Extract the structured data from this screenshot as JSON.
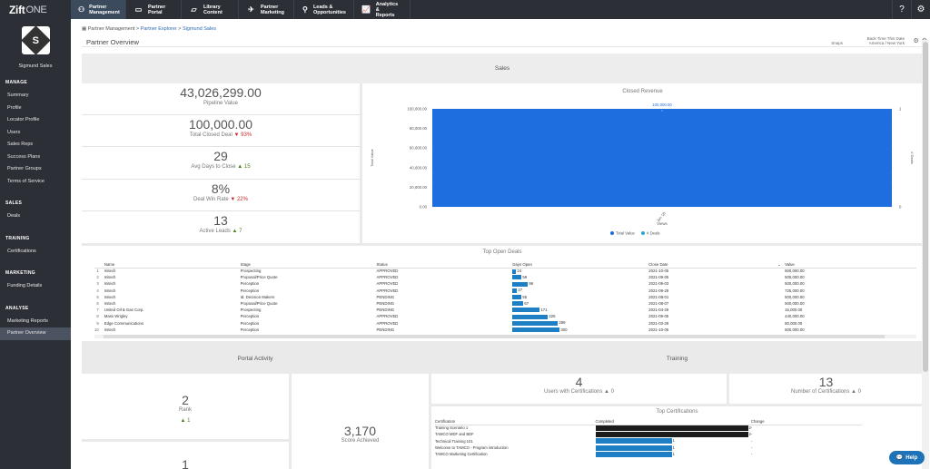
{
  "app": {
    "logo_main": "Zift",
    "logo_suffix": "ONE"
  },
  "nav": [
    {
      "label1": "Partner",
      "label2": "Management",
      "icon": "handshake-icon",
      "glyph": "⚇"
    },
    {
      "label1": "Partner",
      "label2": "Portal",
      "icon": "monitor-icon",
      "glyph": "▭"
    },
    {
      "label1": "Library",
      "label2": "Content",
      "icon": "folder-icon",
      "glyph": "▱"
    },
    {
      "label1": "Partner",
      "label2": "Marketing",
      "icon": "rocket-icon",
      "glyph": "✈"
    },
    {
      "label1": "Leads &",
      "label2": "Opportunities",
      "icon": "funnel-icon",
      "glyph": "⚲"
    },
    {
      "label1": "Analytics &",
      "label2": "Reports",
      "icon": "chart-icon",
      "glyph": "📈"
    }
  ],
  "sidebar": {
    "user": "Sigmund Sales",
    "sections": [
      {
        "title": "MANAGE",
        "items": [
          "Summary",
          "Profile",
          "Locator Profile",
          "Users",
          "Sales Reps",
          "Success Plans",
          "Partner Groups",
          "Terms of Service"
        ]
      },
      {
        "title": "SALES",
        "items": [
          "Deals"
        ]
      },
      {
        "title": "TRAINING",
        "items": [
          "Certifications"
        ]
      },
      {
        "title": "MARKETING",
        "items": [
          "Funding Details"
        ]
      },
      {
        "title": "ANALYSE",
        "items": [
          "Marketing Reports",
          "Partner Overview"
        ]
      }
    ],
    "active": "Partner Overview"
  },
  "breadcrumb": {
    "a": "Partner Management",
    "b": "Partner Explorer",
    "c": "Sigmund Sales",
    "sep": " > "
  },
  "page_title": "Partner Overview",
  "meta": {
    "snapshot": "Snaps",
    "line1": "Back Time This Date",
    "line2": "America / New York"
  },
  "sales_header": "Sales",
  "kpis": [
    {
      "value": "43,026,299.00",
      "label": "Pipeline Value",
      "delta": "",
      "dir": ""
    },
    {
      "value": "100,000.00",
      "label": "Total Closed Deal",
      "delta": "93%",
      "dir": "down"
    },
    {
      "value": "29",
      "label": "Avg Days to Close",
      "delta": "15",
      "dir": "up"
    },
    {
      "value": "8%",
      "label": "Deal Win Rate",
      "delta": "22%",
      "dir": "down"
    },
    {
      "value": "13",
      "label": "Active Leads",
      "delta": "7",
      "dir": "up"
    }
  ],
  "chart_data": {
    "type": "bar",
    "title": "Closed Revenue",
    "categories": [
      "Jun '20"
    ],
    "series": [
      {
        "name": "Total Value",
        "values": [
          100000
        ],
        "color": "#1f6ee0"
      },
      {
        "name": "# Deals",
        "values": [
          1
        ],
        "color": "#29a6d9"
      }
    ],
    "data_labels": [
      "100,000.00"
    ],
    "xlabel": "Views",
    "ylabel": "Total Value",
    "y2label": "# Deals",
    "ylim": [
      0,
      100000
    ],
    "yticks": [
      "0.00",
      "20,000.00",
      "40,000.00",
      "60,000.00",
      "80,000.00",
      "100,000.00"
    ],
    "y2ticks": [
      "0",
      "1"
    ],
    "legend": "bottom"
  },
  "deals": {
    "title": "Top Open Deals",
    "columns": [
      "",
      "Name",
      "Stage",
      "Status",
      "Days Open",
      "Close Date",
      "Value"
    ],
    "rows": [
      [
        "1",
        "Initech",
        "Prospecting",
        "APPROVED",
        24,
        "2021-10-05",
        "500,000.00"
      ],
      [
        "2",
        "Initech",
        "Proposal/Price Quote",
        "APPROVED",
        59,
        "2021-09-05",
        "500,000.00"
      ],
      [
        "3",
        "Initech",
        "Perception",
        "APPROVED",
        96,
        "2021-09-03",
        "500,000.00"
      ],
      [
        "4",
        "Initech",
        "Perception",
        "APPROVED",
        27,
        "2021-09-29",
        "725,000.00"
      ],
      [
        "5",
        "Initech",
        "Id. Decision Makers",
        "PENDING",
        55,
        "2021-08-01",
        "500,000.00"
      ],
      [
        "6",
        "Initech",
        "Proposal/Price Quote",
        "PENDING",
        67,
        "2021-08-07",
        "500,000.00"
      ],
      [
        "7",
        "United Oil & Gas Corp.",
        "Prospecting",
        "PENDING",
        171,
        "2021-04-29",
        "15,000.00"
      ],
      [
        "8",
        "Mass Wrigley",
        "Perception",
        "APPROVED",
        225,
        "2021-09-05",
        "440,000.00"
      ],
      [
        "9",
        "Edge Communications",
        "Perception",
        "APPROVED",
        289,
        "2021-03-29",
        "80,000.00"
      ],
      [
        "10",
        "Initech",
        "Perception",
        "PENDING",
        300,
        "2021-10-05",
        "500,000.00"
      ]
    ]
  },
  "portal_header": "Portal Activity",
  "training_header": "Training",
  "rank": {
    "value": "2",
    "label": "Rank",
    "delta": "1"
  },
  "rank2": {
    "value": "1"
  },
  "score": {
    "value": "3,170",
    "label": "Score Achieved"
  },
  "users_certs": {
    "value": "4",
    "label": "Users with Certifications",
    "delta": "0"
  },
  "num_certs": {
    "value": "13",
    "label": "Number of Certifications",
    "delta": "0"
  },
  "top_certs": {
    "title": "Top Certifications",
    "columns": [
      "Certification",
      "Completed",
      "Change"
    ],
    "rows": [
      [
        "Training Scenario 1",
        2,
        "-"
      ],
      [
        "TAMCO MDF and BDF",
        2,
        "-"
      ],
      [
        "Technical Training 101",
        1,
        "-"
      ],
      [
        "Welcome to TAMCO - Program introduction",
        1,
        "-"
      ],
      [
        "TAMCO Marketing Certification",
        1,
        "-"
      ]
    ]
  },
  "help": "Help"
}
